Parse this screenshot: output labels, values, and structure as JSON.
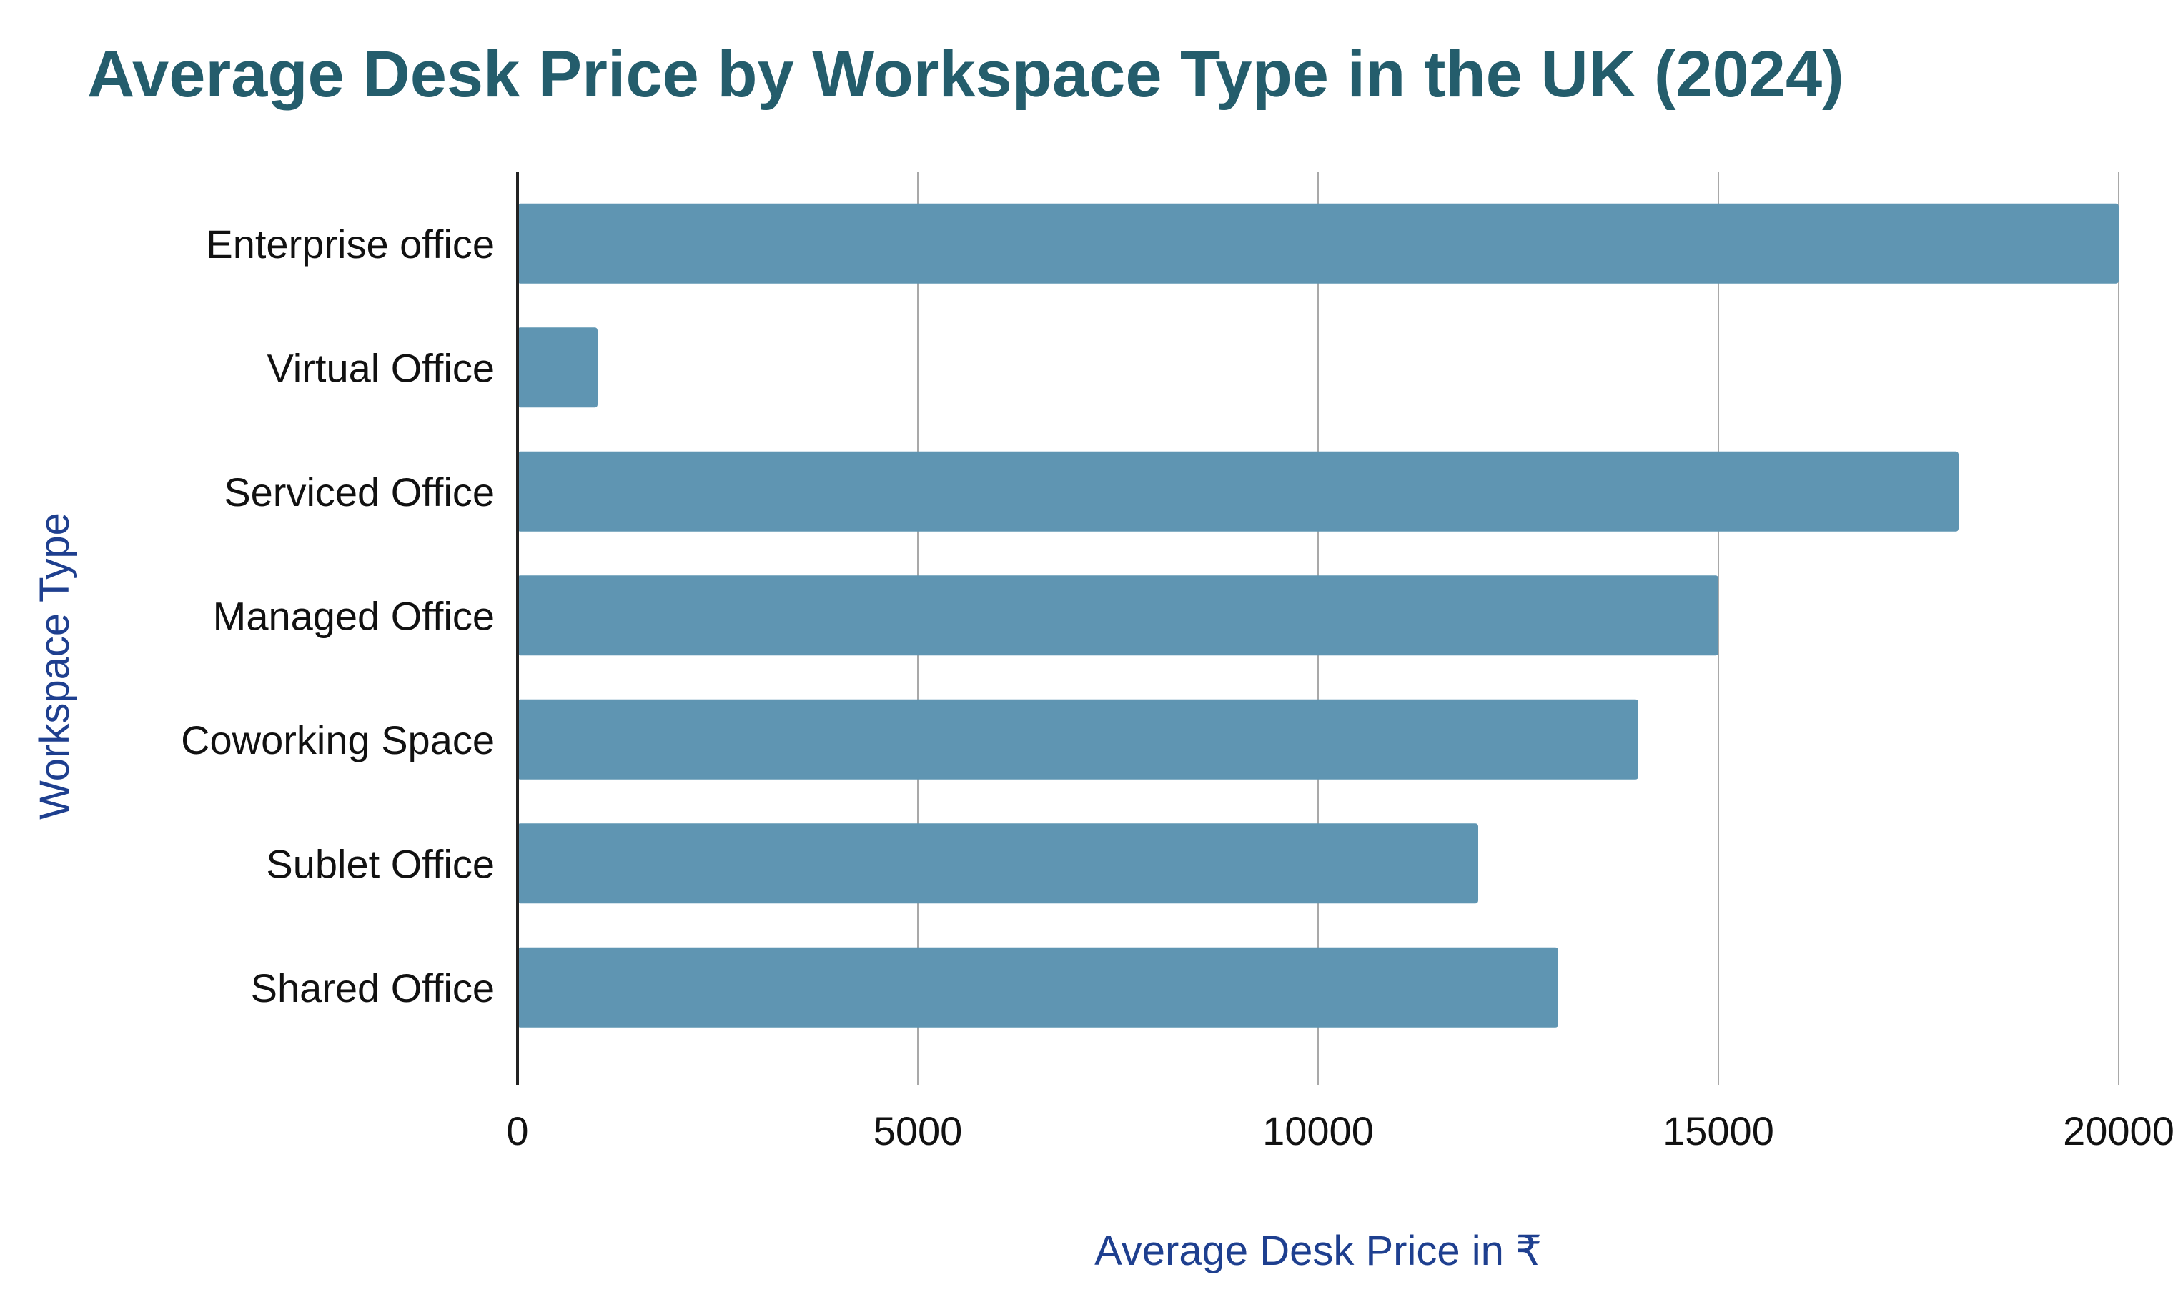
{
  "chart_data": {
    "type": "bar",
    "orientation": "horizontal",
    "title": "Average Desk Price by Workspace Type in the UK (2024)",
    "xlabel": "Average Desk Price in ₹",
    "ylabel": "Workspace Type",
    "categories": [
      "Enterprise office",
      "Virtual Office",
      "Serviced Office",
      "Managed Office",
      "Coworking Space",
      "Sublet Office",
      "Shared Office"
    ],
    "values": [
      20000,
      1000,
      18000,
      15000,
      14000,
      12000,
      13000
    ],
    "xlim": [
      0,
      20000
    ],
    "xticks": [
      "0",
      "5000",
      "10000",
      "15000",
      "20000"
    ],
    "grid": "vertical",
    "legend": "none",
    "colors": {
      "bar": "#5f95b2",
      "title": "#245d6c",
      "axis_title": "#1e3f8f",
      "grid": "#a9a9a9",
      "axis": "#222222",
      "text": "#111111"
    }
  }
}
